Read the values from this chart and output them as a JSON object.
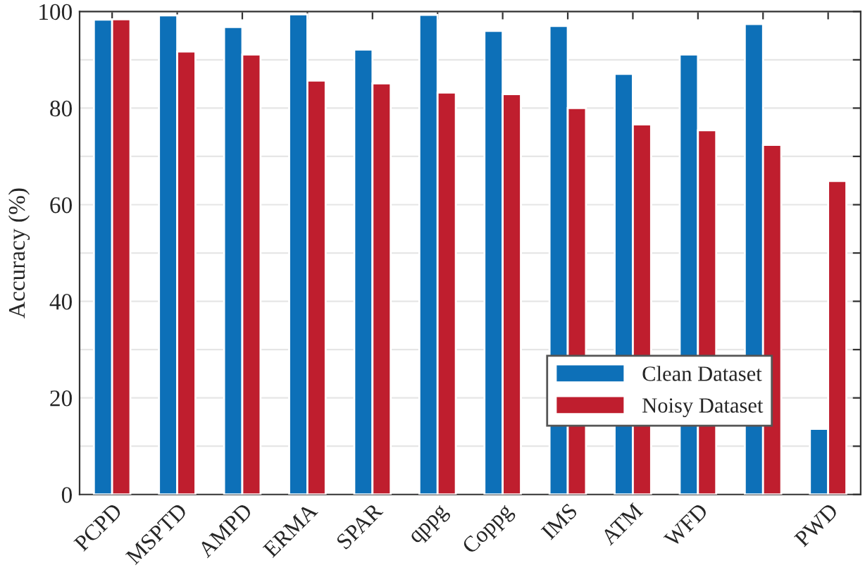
{
  "chart_data": {
    "type": "bar",
    "ylabel": "Accuracy (%)",
    "categories": [
      "PCPD",
      "MSPTD",
      "AMPD",
      "ERMA",
      "SPAR",
      "qppg",
      "Coppg",
      "IMS",
      "ATM",
      "WFD",
      null,
      "PWD"
    ],
    "series": [
      {
        "name": "Clean Dataset",
        "color": "#0d70b8",
        "values": [
          98.3,
          99.2,
          96.8,
          99.4,
          92.1,
          99.3,
          96.0,
          97.0,
          87.1,
          91.1,
          97.4,
          13.6
        ]
      },
      {
        "name": "Noisy Dataset",
        "color": "#bf1e2e",
        "values": [
          98.4,
          91.7,
          91.1,
          85.7,
          85.1,
          83.2,
          82.9,
          80.0,
          76.6,
          75.4,
          72.4,
          64.9
        ]
      }
    ],
    "ylim": [
      0,
      100
    ],
    "yticks": [
      0,
      {
        "value": 10,
        "label": null
      },
      20,
      {
        "value": 30,
        "label": null
      },
      40,
      {
        "value": 50,
        "label": null
      },
      60,
      {
        "value": 70,
        "label": null
      },
      80,
      {
        "value": 90,
        "label": null
      },
      100
    ],
    "grid": "y",
    "legend": "lower right"
  }
}
